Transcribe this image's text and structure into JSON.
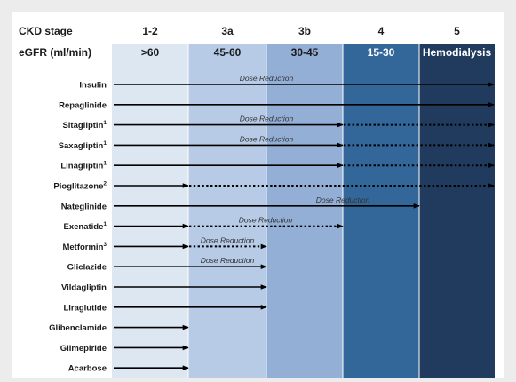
{
  "header": {
    "row1_label": "CKD stage",
    "row2_label": "eGFR (ml/min)"
  },
  "colors": {
    "stage_fills": [
      "#dde7f2",
      "#b7cbe6",
      "#93afd6",
      "#336699",
      "#213b5e"
    ],
    "arrow": "#000000",
    "light_text": "#ffffff",
    "dark_text": "#1a1a1a"
  },
  "stages": [
    {
      "stage": "1-2",
      "egfr": ">60"
    },
    {
      "stage": "3a",
      "egfr": "45-60"
    },
    {
      "stage": "3b",
      "egfr": "30-45"
    },
    {
      "stage": "4",
      "egfr": "15-30"
    },
    {
      "stage": "5",
      "egfr": "Hemodialysis"
    }
  ],
  "drugs": [
    {
      "name": "Insulin",
      "sup": "",
      "solid_end": 5,
      "dotted_end": null,
      "annotation": "Dose Reduction"
    },
    {
      "name": "Repaglinide",
      "sup": "",
      "solid_end": 5,
      "dotted_end": null,
      "annotation": ""
    },
    {
      "name": "Sitagliptin",
      "sup": "1",
      "solid_end": 3,
      "dotted_end": 5,
      "annotation": "Dose Reduction"
    },
    {
      "name": "Saxagliptin",
      "sup": "1",
      "solid_end": 3,
      "dotted_end": 5,
      "annotation": "Dose Reduction"
    },
    {
      "name": "Linagliptin",
      "sup": "1",
      "solid_end": 3,
      "dotted_end": 5,
      "annotation": ""
    },
    {
      "name": "Pioglitazone",
      "sup": "2",
      "solid_end": 1,
      "dotted_end": 5,
      "annotation": ""
    },
    {
      "name": "Nateglinide",
      "sup": "",
      "solid_end": 4,
      "dotted_end": null,
      "annotation": "Dose Reduction"
    },
    {
      "name": "Exenatide",
      "sup": "1",
      "solid_end": 1,
      "dotted_end": 3,
      "annotation": "Dose Reduction"
    },
    {
      "name": "Metformin",
      "sup": "3",
      "solid_end": 1,
      "dotted_end": 2,
      "annotation": "Dose Reduction"
    },
    {
      "name": "Gliclazide",
      "sup": "",
      "solid_end": 2,
      "dotted_end": null,
      "annotation": "Dose Reduction"
    },
    {
      "name": "Vildagliptin",
      "sup": "",
      "solid_end": 2,
      "dotted_end": null,
      "annotation": ""
    },
    {
      "name": "Liraglutide",
      "sup": "",
      "solid_end": 2,
      "dotted_end": null,
      "annotation": ""
    },
    {
      "name": "Glibenclamide",
      "sup": "",
      "solid_end": 1,
      "dotted_end": null,
      "annotation": ""
    },
    {
      "name": "Glimepiride",
      "sup": "",
      "solid_end": 1,
      "dotted_end": null,
      "annotation": ""
    },
    {
      "name": "Acarbose",
      "sup": "",
      "solid_end": 1,
      "dotted_end": null,
      "annotation": ""
    }
  ]
}
